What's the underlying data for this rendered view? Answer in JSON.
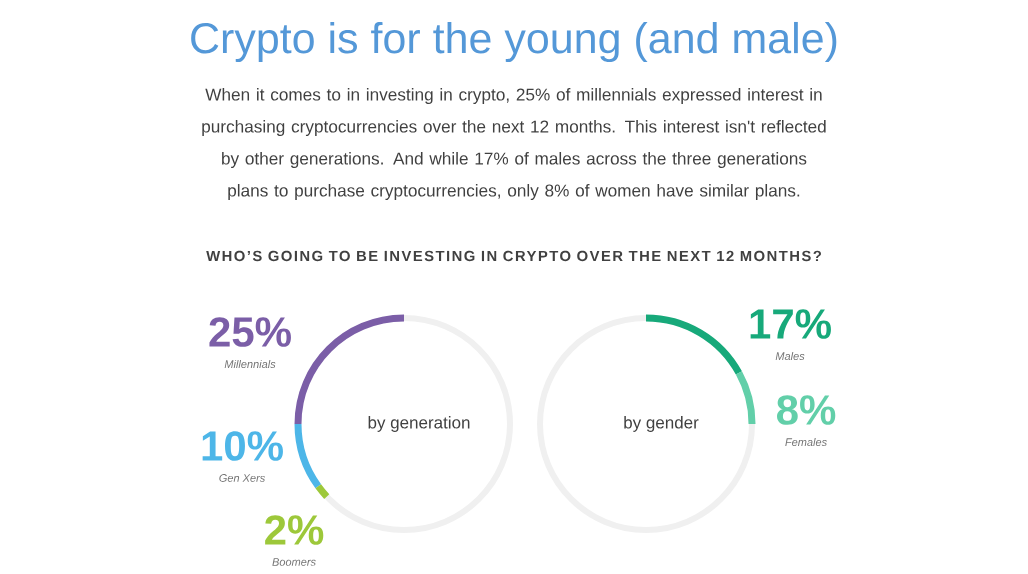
{
  "chart_data": [
    {
      "type": "other",
      "title": "Crypto is for the young (and male)",
      "subtitle": "When it comes to in investing in crypto, 25% of millennials expressed interest in purchasing cryptocurrencies over the next 12 months. This interest isn't reflected by other generations. And while 17% of males across the three generations plans to purchase cryptocurrencies, only 8% of women have similar plans.",
      "annotations": [
        "WHO’S GOING TO BE INVESTING IN CRYPTO OVER THE NEXT 12 MONTHS?",
        "by generation"
      ],
      "categories": [
        "Millennials",
        "Gen Xers",
        "Boomers"
      ],
      "values": [
        25,
        10,
        2
      ],
      "value_labels": [
        "25%",
        "10%",
        "2%"
      ],
      "colors": [
        "#7b5ea7",
        "#4db6e8",
        "#9dc83a"
      ]
    },
    {
      "type": "other",
      "annotations": [
        "by gender"
      ],
      "categories": [
        "Males",
        "Females"
      ],
      "values": [
        17,
        8
      ],
      "value_labels": [
        "17%",
        "8%"
      ],
      "colors": [
        "#17a97a",
        "#62cfa9"
      ]
    }
  ]
}
